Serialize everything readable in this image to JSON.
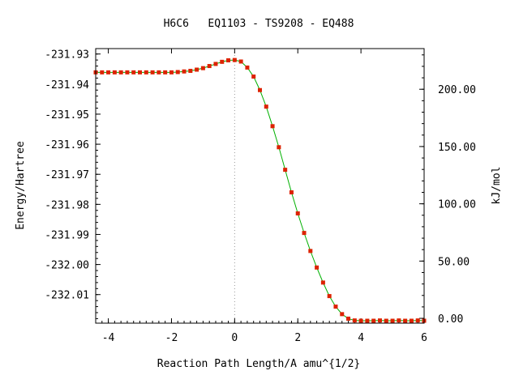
{
  "chart_data": {
    "type": "line",
    "title": "H6C6   EQ1103 - TS9208 - EQ488",
    "xlabel": "Reaction Path Length/A amu^{1/2}",
    "ylabel": "Energy/Hartree",
    "y2label": "kJ/mol",
    "xlim": [
      -4.4,
      6
    ],
    "ylim": [
      -232.0195,
      -231.9282
    ],
    "y2lim": [
      -4.2,
      235.5
    ],
    "x_ticks": [
      -4,
      -2,
      0,
      2,
      4,
      6
    ],
    "x_tick_labels": [
      "-4",
      "-2",
      "0",
      "2",
      "4",
      "6"
    ],
    "y_ticks": [
      -231.93,
      -231.94,
      -231.95,
      -231.96,
      -231.97,
      -231.98,
      -231.99,
      -232.0,
      -232.01
    ],
    "y_tick_labels": [
      "-231.93",
      "-231.94",
      "-231.95",
      "-231.96",
      "-231.97",
      "-231.98",
      "-231.99",
      "-232.00",
      "-232.01"
    ],
    "y2_ticks": [
      0,
      50,
      100,
      150,
      200
    ],
    "y2_tick_labels": [
      "0.00",
      "50.00",
      "100.00",
      "150.00",
      "200.00"
    ],
    "ts_marker_x": 0,
    "grid": false,
    "line_color": "#00b000",
    "marker_color": "#dd2200",
    "series": [
      {
        "x": [
          -4.4,
          -4.2,
          -4.0,
          -3.8,
          -3.6,
          -3.4,
          -3.2,
          -3.0,
          -2.8,
          -2.6,
          -2.4,
          -2.2,
          -2.0,
          -1.8,
          -1.6,
          -1.4,
          -1.2,
          -1.0,
          -0.8,
          -0.6,
          -0.4,
          -0.2,
          0.0,
          0.2,
          0.4,
          0.6,
          0.8,
          1.0,
          1.2,
          1.4,
          1.6,
          1.8,
          2.0,
          2.2,
          2.4,
          2.6,
          2.8,
          3.0,
          3.2,
          3.4,
          3.6,
          3.8,
          4.0,
          4.2,
          4.4,
          4.6,
          4.8,
          5.0,
          5.2,
          5.4,
          5.6,
          5.8,
          6.0
        ],
        "y": [
          -231.9361,
          -231.9361,
          -231.9361,
          -231.9361,
          -231.9361,
          -231.9361,
          -231.9361,
          -231.9361,
          -231.9361,
          -231.9361,
          -231.9361,
          -231.9361,
          -231.9361,
          -231.936,
          -231.9358,
          -231.9356,
          -231.9352,
          -231.9347,
          -231.934,
          -231.9333,
          -231.9326,
          -231.9321,
          -231.932,
          -231.9325,
          -231.9345,
          -231.9375,
          -231.942,
          -231.9475,
          -231.954,
          -231.961,
          -231.9685,
          -231.976,
          -231.983,
          -231.9895,
          -231.9955,
          -232.001,
          -232.006,
          -232.0105,
          -232.014,
          -232.0165,
          -232.018,
          -232.0186,
          -232.0187,
          -232.0187,
          -232.0187,
          -232.0186,
          -232.0187,
          -232.0187,
          -232.0186,
          -232.0187,
          -232.0187,
          -232.0186,
          -232.0187
        ]
      }
    ]
  }
}
